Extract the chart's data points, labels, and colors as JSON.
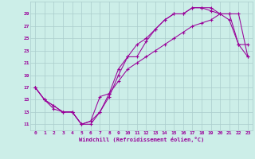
{
  "xlabel": "Windchill (Refroidissement éolien,°C)",
  "bg_color": "#cceee8",
  "grid_color": "#aacccc",
  "line_color": "#990099",
  "xlim": [
    -0.5,
    23.5
  ],
  "ylim": [
    10,
    31
  ],
  "xticks": [
    0,
    1,
    2,
    3,
    4,
    5,
    6,
    7,
    8,
    9,
    10,
    11,
    12,
    13,
    14,
    15,
    16,
    17,
    18,
    19,
    20,
    21,
    22,
    23
  ],
  "yticks": [
    11,
    13,
    15,
    17,
    19,
    21,
    23,
    25,
    27,
    29
  ],
  "line1_x": [
    0,
    1,
    2,
    3,
    4,
    5,
    6,
    7,
    8,
    9,
    10,
    11,
    12,
    13,
    14,
    15,
    16,
    17,
    18,
    19,
    20,
    21,
    22,
    23
  ],
  "line1_y": [
    17,
    15,
    14,
    13,
    13,
    11,
    11,
    13,
    16,
    18,
    20,
    21,
    22,
    23,
    24,
    25,
    26,
    27,
    27.5,
    28,
    29,
    29,
    29,
    22
  ],
  "line2_x": [
    0,
    1,
    2,
    3,
    4,
    5,
    6,
    7,
    8,
    9,
    10,
    11,
    12,
    13,
    14,
    15,
    16,
    17,
    18,
    19,
    20,
    21,
    22,
    23
  ],
  "line2_y": [
    17,
    15,
    14,
    13,
    13,
    11,
    11.5,
    13,
    15.5,
    19,
    22,
    22,
    24.5,
    26.5,
    28,
    29,
    29,
    30,
    30,
    29.5,
    29,
    29,
    24,
    24
  ],
  "line3_x": [
    0,
    1,
    2,
    3,
    4,
    5,
    6,
    7,
    8,
    9,
    10,
    11,
    12,
    13,
    14,
    15,
    16,
    17,
    18,
    19,
    20,
    21,
    22,
    23
  ],
  "line3_y": [
    17,
    15,
    13.5,
    13,
    13,
    11,
    11.5,
    15.5,
    16,
    20,
    22,
    24,
    25,
    26.5,
    28,
    29,
    29,
    30,
    30,
    30,
    29,
    28,
    24,
    22
  ],
  "marker": "+"
}
